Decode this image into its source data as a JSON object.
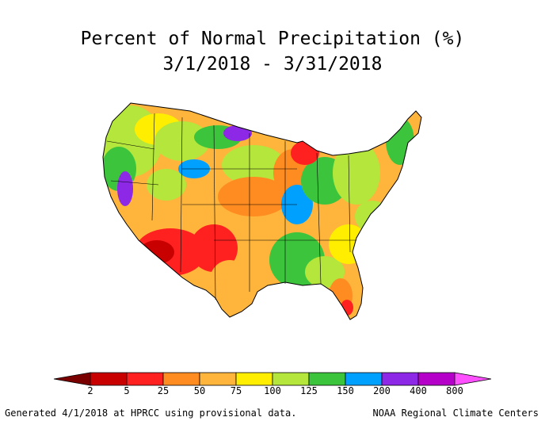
{
  "map": {
    "title": "Percent of Normal Precipitation (%)",
    "period": "3/1/2018 - 3/31/2018",
    "region": "Contiguous United States",
    "legend": {
      "labels": [
        "2",
        "5",
        "25",
        "50",
        "75",
        "100",
        "125",
        "150",
        "200",
        "400",
        "800"
      ],
      "colors": [
        "#7a0000",
        "#c80000",
        "#ff2020",
        "#ff8c20",
        "#ffb43c",
        "#ffee00",
        "#b4e63c",
        "#3cc43c",
        "#00a0ff",
        "#8c28e6",
        "#b400c8",
        "#ff50ff"
      ]
    },
    "footer_left": "Generated 4/1/2018 at HPRCC using provisional data.",
    "footer_right": "NOAA Regional Climate Centers"
  }
}
